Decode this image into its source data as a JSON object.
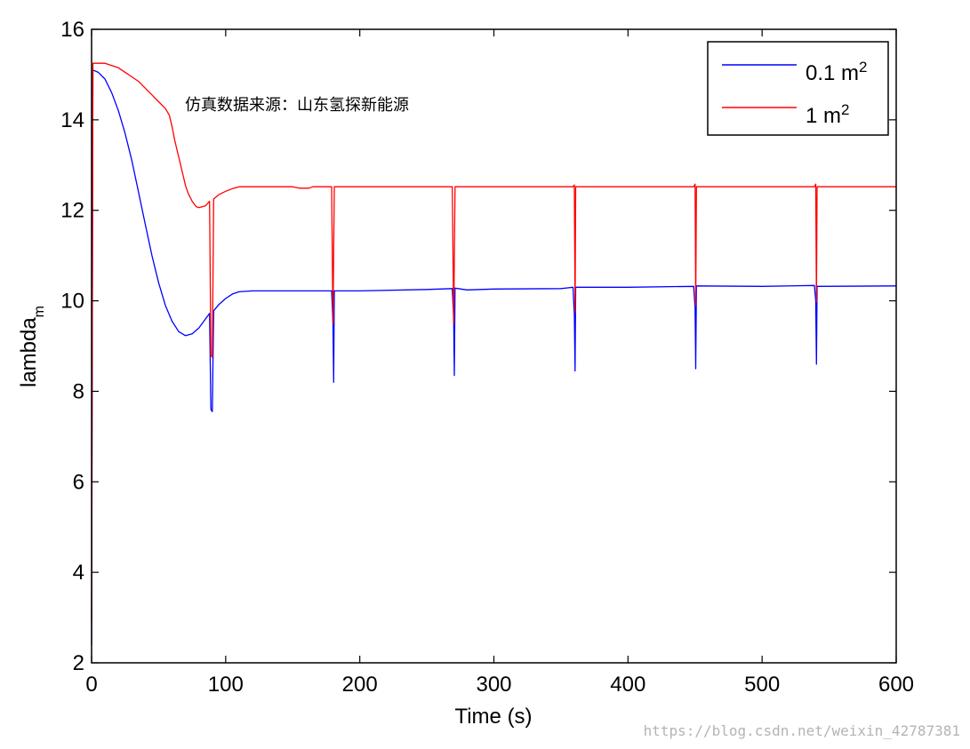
{
  "chart_data": {
    "type": "line",
    "title": "",
    "xlabel": "Time (s)",
    "ylabel_base": "lambda",
    "ylabel_sub": "m",
    "xlim": [
      0,
      600
    ],
    "ylim": [
      2,
      16
    ],
    "xticks": [
      0,
      100,
      200,
      300,
      400,
      500,
      600
    ],
    "yticks": [
      2,
      4,
      6,
      8,
      10,
      12,
      14,
      16
    ],
    "grid": false,
    "legend_position": "top-right",
    "annotation": "仿真数据来源：山东氢探新能源",
    "series": [
      {
        "name_base": "0.1 m",
        "name_sup": "2",
        "color": "#0000ff",
        "points": [
          [
            0,
            2.4
          ],
          [
            1,
            15.1
          ],
          [
            5,
            15.05
          ],
          [
            10,
            14.9
          ],
          [
            15,
            14.6
          ],
          [
            20,
            14.2
          ],
          [
            25,
            13.7
          ],
          [
            30,
            13.1
          ],
          [
            35,
            12.4
          ],
          [
            40,
            11.7
          ],
          [
            45,
            11.0
          ],
          [
            50,
            10.4
          ],
          [
            55,
            9.9
          ],
          [
            60,
            9.55
          ],
          [
            65,
            9.32
          ],
          [
            70,
            9.23
          ],
          [
            75,
            9.27
          ],
          [
            80,
            9.4
          ],
          [
            85,
            9.6
          ],
          [
            88,
            9.72
          ],
          [
            89,
            7.6
          ],
          [
            90,
            7.55
          ],
          [
            91,
            9.78
          ],
          [
            95,
            9.92
          ],
          [
            100,
            10.05
          ],
          [
            105,
            10.15
          ],
          [
            110,
            10.2
          ],
          [
            120,
            10.22
          ],
          [
            150,
            10.22
          ],
          [
            179,
            10.22
          ],
          [
            180,
            9.5
          ],
          [
            180.5,
            8.2
          ],
          [
            181,
            10.22
          ],
          [
            200,
            10.22
          ],
          [
            250,
            10.25
          ],
          [
            269,
            10.27
          ],
          [
            270,
            9.6
          ],
          [
            270.5,
            8.35
          ],
          [
            271,
            10.28
          ],
          [
            280,
            10.24
          ],
          [
            300,
            10.26
          ],
          [
            350,
            10.27
          ],
          [
            359,
            10.3
          ],
          [
            360,
            9.7
          ],
          [
            360.5,
            8.45
          ],
          [
            361,
            10.3
          ],
          [
            400,
            10.3
          ],
          [
            449,
            10.32
          ],
          [
            450,
            9.85
          ],
          [
            450.5,
            8.5
          ],
          [
            451,
            10.33
          ],
          [
            500,
            10.32
          ],
          [
            539,
            10.34
          ],
          [
            540,
            10.0
          ],
          [
            540.5,
            8.6
          ],
          [
            541,
            10.32
          ],
          [
            600,
            10.33
          ]
        ]
      },
      {
        "name_base": "1 m",
        "name_sup": "2",
        "color": "#ff0000",
        "points": [
          [
            0,
            2.9
          ],
          [
            1,
            15.25
          ],
          [
            10,
            15.25
          ],
          [
            15,
            15.2
          ],
          [
            20,
            15.15
          ],
          [
            25,
            15.05
          ],
          [
            30,
            14.95
          ],
          [
            35,
            14.85
          ],
          [
            40,
            14.7
          ],
          [
            45,
            14.55
          ],
          [
            50,
            14.4
          ],
          [
            55,
            14.25
          ],
          [
            58,
            14.1
          ],
          [
            60,
            13.85
          ],
          [
            62,
            13.55
          ],
          [
            64,
            13.3
          ],
          [
            66,
            13.05
          ],
          [
            68,
            12.8
          ],
          [
            70,
            12.55
          ],
          [
            72,
            12.38
          ],
          [
            75,
            12.2
          ],
          [
            78,
            12.08
          ],
          [
            80,
            12.06
          ],
          [
            85,
            12.1
          ],
          [
            88,
            12.2
          ],
          [
            89,
            8.8
          ],
          [
            90,
            8.75
          ],
          [
            91,
            12.25
          ],
          [
            95,
            12.35
          ],
          [
            100,
            12.42
          ],
          [
            105,
            12.48
          ],
          [
            110,
            12.52
          ],
          [
            150,
            12.52
          ],
          [
            155,
            12.49
          ],
          [
            162,
            12.49
          ],
          [
            165,
            12.52
          ],
          [
            179,
            12.52
          ],
          [
            180,
            9.5
          ],
          [
            181,
            12.52
          ],
          [
            269,
            12.52
          ],
          [
            270,
            9.5
          ],
          [
            271,
            12.52
          ],
          [
            359,
            12.52
          ],
          [
            360,
            12.56
          ],
          [
            360.5,
            9.75
          ],
          [
            361,
            12.52
          ],
          [
            449,
            12.52
          ],
          [
            450,
            12.58
          ],
          [
            450.5,
            9.9
          ],
          [
            451,
            12.52
          ],
          [
            539,
            12.52
          ],
          [
            540,
            12.58
          ],
          [
            540.5,
            9.98
          ],
          [
            541,
            12.52
          ],
          [
            600,
            12.52
          ]
        ]
      }
    ]
  },
  "watermark": "https://blog.csdn.net/weixin_42787381"
}
